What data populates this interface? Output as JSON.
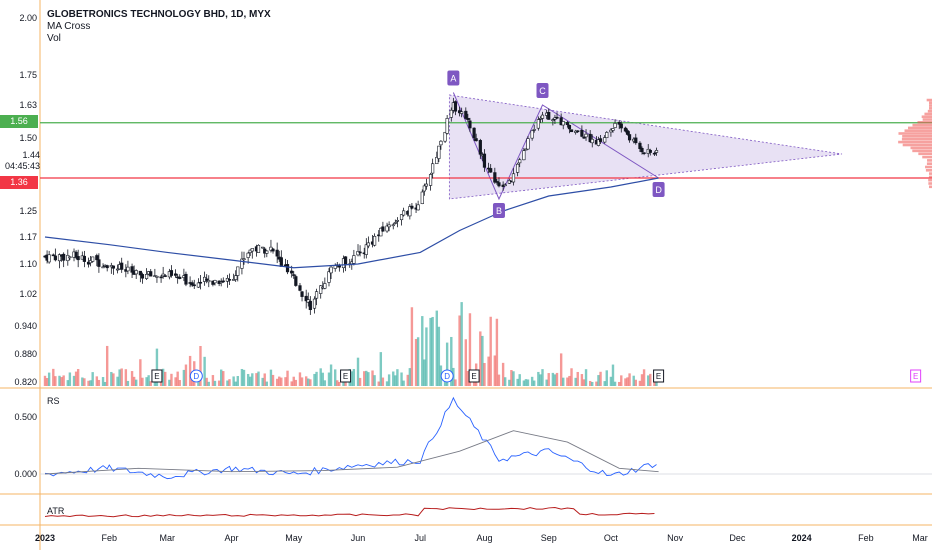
{
  "header": {
    "title": "GLOBETRONICS TECHNOLOGY BHD, 1D, MYX",
    "indicator1": "MA Cross",
    "indicator2": "Vol"
  },
  "price_labels": {
    "resistance": "1.56",
    "support": "1.36",
    "current": "1.44",
    "countdown": "04:45:43"
  },
  "panes": {
    "rs_label": "RS",
    "atr_label": "ATR"
  },
  "colors": {
    "up": "#26a69a",
    "down": "#ef5350",
    "ma": "#2e4ea6",
    "resistance": "#4caf50",
    "support": "#f23645",
    "pattern": "#7e57c2",
    "rs": "#2962ff",
    "rs_ma": "#787b86",
    "atr": "#b71c1c"
  },
  "chart_data": {
    "type": "candlestick",
    "title": "GLOBETRONICS TECHNOLOGY BHD, 1D, MYX",
    "y_ticks": [
      2.0,
      1.75,
      1.63,
      1.5,
      1.44,
      1.25,
      1.17,
      1.1,
      1.02,
      0.94,
      0.88,
      0.82
    ],
    "y_tick_labels": [
      "2.00",
      "1.75",
      "1.63",
      "1.50",
      "1.44",
      "1.25",
      "1.17",
      "1.10",
      "1.02",
      "0.940",
      "0.880",
      "0.820"
    ],
    "x_ticks": [
      "2023",
      "Feb",
      "Mar",
      "Apr",
      "May",
      "Jun",
      "Jul",
      "Aug",
      "Sep",
      "Oct",
      "Nov",
      "Dec",
      "2024",
      "Feb",
      "Mar"
    ],
    "horizontal_lines": [
      {
        "label": "1.56",
        "value": 1.56
      },
      {
        "label": "1.36",
        "value": 1.36
      }
    ],
    "pattern_points": [
      {
        "label": "A",
        "date": "2023-07-17",
        "price": 1.68
      },
      {
        "label": "B",
        "date": "2023-08-08",
        "price": 1.29
      },
      {
        "label": "C",
        "date": "2023-08-29",
        "price": 1.63
      },
      {
        "label": "D",
        "date": "2023-10-24",
        "price": 1.36
      }
    ],
    "event_markers": [
      {
        "label": "E",
        "date": "2023-02-24"
      },
      {
        "label": "D",
        "date": "2023-03-15"
      },
      {
        "label": "E",
        "date": "2023-05-26"
      },
      {
        "label": "D",
        "date": "2023-07-14"
      },
      {
        "label": "E",
        "date": "2023-07-27"
      },
      {
        "label": "E",
        "date": "2023-10-24"
      },
      {
        "label": "E",
        "date": "2024-02-25"
      }
    ],
    "close_series": [
      {
        "date": "2023-01-01",
        "close": 1.12
      },
      {
        "date": "2023-01-15",
        "close": 1.12
      },
      {
        "date": "2023-02-01",
        "close": 1.1
      },
      {
        "date": "2023-02-15",
        "close": 1.07
      },
      {
        "date": "2023-03-01",
        "close": 1.07
      },
      {
        "date": "2023-03-15",
        "close": 1.05
      },
      {
        "date": "2023-04-01",
        "close": 1.06
      },
      {
        "date": "2023-04-10",
        "close": 1.14
      },
      {
        "date": "2023-04-20",
        "close": 1.14
      },
      {
        "date": "2023-05-01",
        "close": 1.06
      },
      {
        "date": "2023-05-10",
        "close": 0.99
      },
      {
        "date": "2023-05-20",
        "close": 1.09
      },
      {
        "date": "2023-06-01",
        "close": 1.12
      },
      {
        "date": "2023-06-15",
        "close": 1.2
      },
      {
        "date": "2023-06-30",
        "close": 1.27
      },
      {
        "date": "2023-07-05",
        "close": 1.35
      },
      {
        "date": "2023-07-12",
        "close": 1.5
      },
      {
        "date": "2023-07-17",
        "close": 1.63
      },
      {
        "date": "2023-07-24",
        "close": 1.58
      },
      {
        "date": "2023-07-31",
        "close": 1.43
      },
      {
        "date": "2023-08-08",
        "close": 1.33
      },
      {
        "date": "2023-08-15",
        "close": 1.36
      },
      {
        "date": "2023-08-22",
        "close": 1.48
      },
      {
        "date": "2023-08-29",
        "close": 1.6
      },
      {
        "date": "2023-09-10",
        "close": 1.55
      },
      {
        "date": "2023-09-25",
        "close": 1.48
      },
      {
        "date": "2023-10-05",
        "close": 1.56
      },
      {
        "date": "2023-10-15",
        "close": 1.46
      },
      {
        "date": "2023-10-24",
        "close": 1.44
      }
    ],
    "rs_y_ticks": [
      "0.500",
      "0.000"
    ],
    "rs_series": [
      {
        "date": "2023-01-01",
        "value": 0.0
      },
      {
        "date": "2023-02-01",
        "value": 0.05
      },
      {
        "date": "2023-03-01",
        "value": -0.02
      },
      {
        "date": "2023-04-01",
        "value": 0.05
      },
      {
        "date": "2023-05-01",
        "value": 0.0
      },
      {
        "date": "2023-06-01",
        "value": 0.08
      },
      {
        "date": "2023-07-01",
        "value": 0.12
      },
      {
        "date": "2023-07-17",
        "value": 0.65
      },
      {
        "date": "2023-08-08",
        "value": 0.13
      },
      {
        "date": "2023-09-01",
        "value": 0.2
      },
      {
        "date": "2023-10-01",
        "value": -0.02
      },
      {
        "date": "2023-10-24",
        "value": 0.1
      }
    ]
  }
}
